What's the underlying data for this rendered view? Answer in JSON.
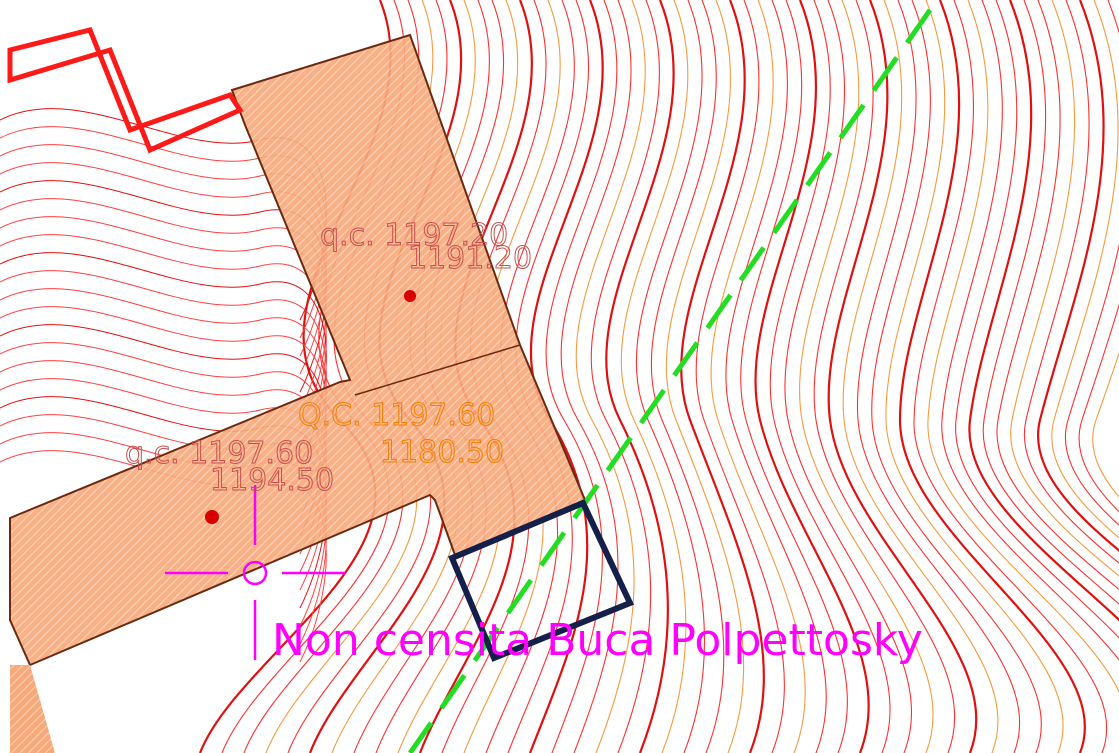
{
  "labels": [
    {
      "text": "q.c. 1197.20"
    },
    {
      "text": "1191.20"
    },
    {
      "text": "Q.C. 1197.60"
    },
    {
      "text": "1180.50"
    },
    {
      "text": "q.c. 1197.60"
    },
    {
      "text": "1194.50"
    },
    {
      "text": "Non censita Buca Polpettosky"
    }
  ]
}
